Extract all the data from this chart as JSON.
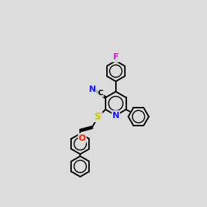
{
  "background_color": "#dcdcdc",
  "bond_color": "#000000",
  "bw": 1.5,
  "atom_colors": {
    "N": "#1a1aff",
    "S": "#cccc00",
    "O": "#ff2200",
    "F": "#ff00ff"
  },
  "rr": 0.5
}
